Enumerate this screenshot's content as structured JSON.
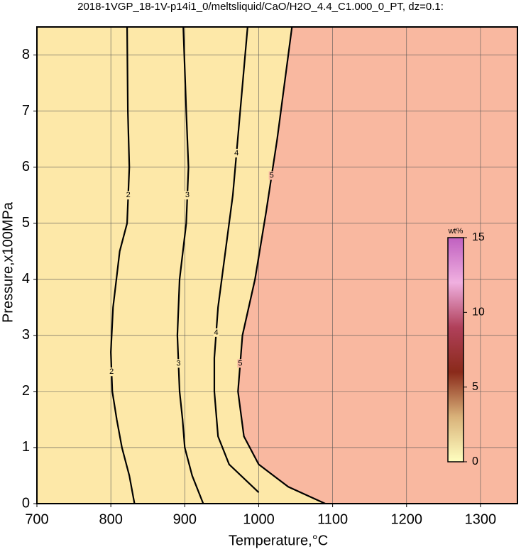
{
  "chart_data": {
    "type": "contour",
    "title": "2018-1VGP_18-1V-p14i1_0/meltsliquid/CaO/H2O_4.4_C1.000_0_PT, dz=0.1:",
    "x_label": "Temperature,°C",
    "y_label": "Pressure,x100MPa",
    "xlim": [
      700,
      1350
    ],
    "ylim": [
      0,
      8.5
    ],
    "xticks": [
      700,
      800,
      900,
      1000,
      1100,
      1200,
      1300
    ],
    "yticks": [
      0,
      1,
      2,
      3,
      4,
      5,
      6,
      7,
      8
    ],
    "grid": true,
    "region_colors": [
      "#fde8a8",
      "#f9b8a0"
    ],
    "series": [
      {
        "name": "2",
        "color": "#000000",
        "x": [
          832,
          825,
          815,
          808,
          802,
          800,
          803,
          812,
          822,
          825,
          823,
          822
        ],
        "y": [
          0,
          0.5,
          1,
          1.5,
          2,
          2.7,
          3.5,
          4.5,
          5,
          6,
          7,
          8.5
        ]
      },
      {
        "name": "3",
        "color": "#000000",
        "x": [
          925,
          910,
          900,
          897,
          893,
          890,
          893,
          902,
          905,
          902,
          898
        ],
        "y": [
          0,
          0.5,
          1,
          1.5,
          2,
          3,
          4,
          5,
          6,
          7,
          8.5
        ]
      },
      {
        "name": "4",
        "color": "#000000",
        "x": [
          1000,
          960,
          945,
          940,
          940,
          945,
          955,
          965,
          975,
          985
        ],
        "y": [
          0.2,
          0.7,
          1.2,
          2,
          2.6,
          3.5,
          4.5,
          5.5,
          7,
          8.5
        ]
      },
      {
        "name": "5",
        "color": "#000000",
        "x": [
          1090,
          1040,
          1000,
          980,
          972,
          978,
          995,
          1010,
          1025,
          1045
        ],
        "y": [
          0,
          0.3,
          0.7,
          1.2,
          2,
          3,
          4,
          5.2,
          6.5,
          8.5
        ]
      }
    ],
    "colorbar": {
      "label": "wt%",
      "lim": [
        0,
        15
      ],
      "ticks": [
        0,
        5,
        10,
        15
      ],
      "colors": [
        "#ffffc0",
        "#d9b27a",
        "#8a2a1a",
        "#b0405a",
        "#f0b0e0",
        "#c060c0"
      ]
    }
  }
}
